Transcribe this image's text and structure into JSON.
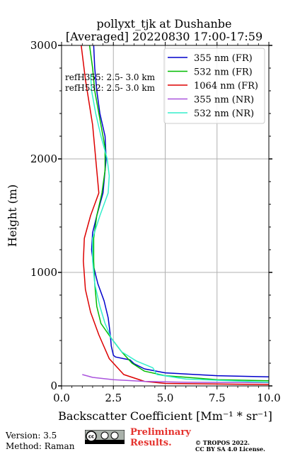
{
  "header": {
    "title_line1": "pollyxt_tjk at Dushanbe",
    "title_line2": "[Averaged] 20220830 17:00-17:59"
  },
  "chart_data": {
    "type": "line",
    "xlabel": "Backscatter Coefficient [Mm⁻¹ * sr⁻¹]",
    "ylabel": "Height (m)",
    "xlim": [
      0,
      10
    ],
    "ylim": [
      0,
      3000
    ],
    "xticks": [
      0.0,
      2.5,
      5.0,
      7.5,
      10.0
    ],
    "xtick_labels": [
      "0.0",
      "2.5",
      "5.0",
      "7.5",
      "10.0"
    ],
    "yticks": [
      0,
      1000,
      2000,
      3000
    ],
    "ytick_labels": [
      "0",
      "1000",
      "2000",
      "3000"
    ],
    "grid": true,
    "legend_position": "top-right",
    "annotations": [
      "refH355:  2.5- 3.0 km",
      "refH532:  2.5- 3.0 km"
    ],
    "series": [
      {
        "name": "355 nm (FR)",
        "color": "#0000cc",
        "points": [
          [
            10,
            80
          ],
          [
            7.5,
            90
          ],
          [
            5.0,
            115
          ],
          [
            4.0,
            150
          ],
          [
            3.5,
            195
          ],
          [
            3.3,
            230
          ],
          [
            3.0,
            240
          ],
          [
            2.6,
            255
          ],
          [
            2.5,
            270
          ],
          [
            2.4,
            350
          ],
          [
            2.35,
            450
          ],
          [
            2.25,
            600
          ],
          [
            2.05,
            750
          ],
          [
            1.75,
            900
          ],
          [
            1.55,
            1050
          ],
          [
            1.45,
            1200
          ],
          [
            1.5,
            1350
          ],
          [
            1.7,
            1500
          ],
          [
            2.0,
            1700
          ],
          [
            2.1,
            1900
          ],
          [
            2.15,
            2000
          ],
          [
            2.1,
            2200
          ],
          [
            1.85,
            2400
          ],
          [
            1.7,
            2600
          ],
          [
            1.6,
            2800
          ],
          [
            1.55,
            3000
          ]
        ]
      },
      {
        "name": "532 nm (FR)",
        "color": "#00bb00",
        "points": [
          [
            10,
            45
          ],
          [
            7.5,
            55
          ],
          [
            5.0,
            90
          ],
          [
            4.0,
            130
          ],
          [
            3.4,
            200
          ],
          [
            2.9,
            300
          ],
          [
            2.4,
            420
          ],
          [
            1.9,
            550
          ],
          [
            1.7,
            700
          ],
          [
            1.6,
            900
          ],
          [
            1.55,
            1100
          ],
          [
            1.55,
            1300
          ],
          [
            1.7,
            1500
          ],
          [
            1.95,
            1700
          ],
          [
            2.1,
            1900
          ],
          [
            2.1,
            2100
          ],
          [
            1.85,
            2350
          ],
          [
            1.6,
            2600
          ],
          [
            1.5,
            2800
          ],
          [
            1.35,
            3000
          ]
        ]
      },
      {
        "name": "1064 nm (FR)",
        "color": "#dd0000",
        "points": [
          [
            10,
            12
          ],
          [
            5.0,
            22
          ],
          [
            4.0,
            40
          ],
          [
            3.0,
            100
          ],
          [
            2.3,
            240
          ],
          [
            1.8,
            450
          ],
          [
            1.4,
            650
          ],
          [
            1.15,
            850
          ],
          [
            1.05,
            1100
          ],
          [
            1.1,
            1300
          ],
          [
            1.4,
            1500
          ],
          [
            1.8,
            1700
          ],
          [
            1.5,
            2300
          ],
          [
            1.15,
            2700
          ],
          [
            0.95,
            3000
          ]
        ]
      },
      {
        "name": "355 nm (NR)",
        "color": "#aa55dd",
        "points": [
          [
            10,
            28
          ],
          [
            6.0,
            32
          ],
          [
            4.0,
            40
          ],
          [
            2.5,
            55
          ],
          [
            1.5,
            75
          ],
          [
            1.0,
            100
          ]
        ]
      },
      {
        "name": "532 nm (NR)",
        "color": "#33eecc",
        "points": [
          [
            10,
            32
          ],
          [
            6.0,
            60
          ],
          [
            4.6,
            100
          ],
          [
            4.4,
            160
          ],
          [
            3.6,
            220
          ],
          [
            2.9,
            300
          ],
          [
            2.4,
            420
          ],
          [
            2.1,
            550
          ],
          [
            1.85,
            700
          ],
          [
            1.6,
            900
          ],
          [
            1.5,
            1100
          ],
          [
            1.5,
            1300
          ],
          [
            1.85,
            1500
          ],
          [
            2.25,
            1700
          ],
          [
            2.3,
            1850
          ],
          [
            2.2,
            2000
          ],
          [
            1.9,
            2200
          ],
          [
            1.65,
            2400
          ],
          [
            1.45,
            2600
          ],
          [
            1.4,
            2750
          ]
        ]
      }
    ]
  },
  "footer": {
    "version": "Version: 3.5",
    "method": "Method: Raman",
    "preliminary_line1": "Preliminary",
    "preliminary_line2": "Results.",
    "copyright_line1": "© TROPOS 2022.",
    "copyright_line2": "CC BY SA 4.0 License."
  }
}
